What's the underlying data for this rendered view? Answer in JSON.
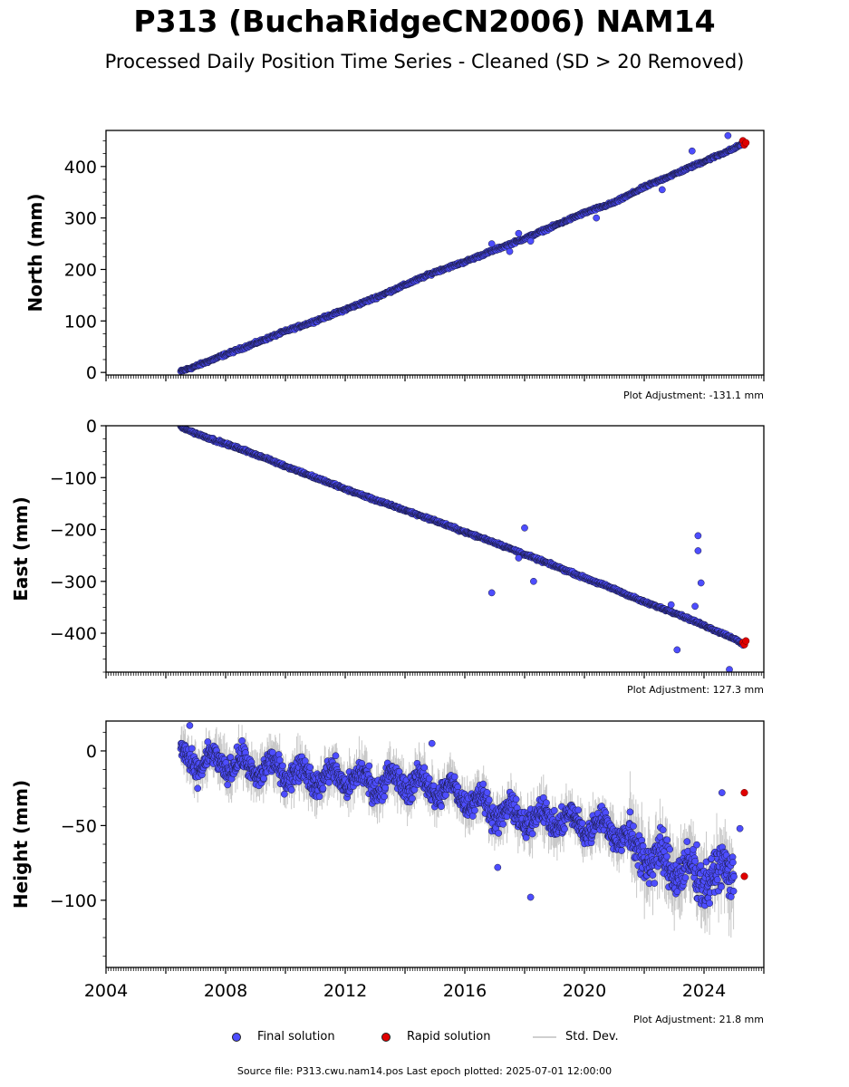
{
  "title": "P313 (BuchaRidgeCN2006) NAM14",
  "subtitle": "Processed Daily Position Time Series - Cleaned (SD > 20 Removed)",
  "footer": "Source file: P313.cwu.nam14.pos  Last epoch plotted: 2025-07-01 12:00:00",
  "legend": {
    "final": "Final solution",
    "rapid": "Rapid solution",
    "stddev": "Std. Dev."
  },
  "colors": {
    "final": "#4d4dff",
    "final_edge": "#1a1a40",
    "rapid": "#e00000",
    "stddev": "#c8c8c8"
  },
  "chart_data": [
    {
      "type": "scatter",
      "ylabel": "North (mm)",
      "adjustment": "Plot Adjustment: -131.1 mm",
      "xlim": [
        2004.0,
        2026.0
      ],
      "ylim": [
        -5,
        470
      ],
      "yticks": [
        0,
        100,
        200,
        300,
        400
      ],
      "ytick_labels": [
        "0",
        "100",
        "200",
        "300",
        "400"
      ],
      "series": [
        {
          "name": "Final solution",
          "x": [
            2006.5,
            2007.0,
            2008.0,
            2009.0,
            2010.0,
            2011.0,
            2012.0,
            2013.0,
            2014.0,
            2015.0,
            2016.0,
            2017.0,
            2018.0,
            2019.0,
            2020.0,
            2021.0,
            2022.0,
            2023.0,
            2024.0,
            2025.0,
            2025.3
          ],
          "y": [
            2,
            12,
            35,
            57,
            80,
            100,
            122,
            145,
            170,
            195,
            215,
            238,
            260,
            285,
            310,
            330,
            360,
            385,
            410,
            435,
            445
          ],
          "outliers_x": [
            2016.9,
            2017.5,
            2017.8,
            2018.2,
            2020.4,
            2022.6,
            2023.6,
            2024.8
          ],
          "outliers_y": [
            250,
            235,
            270,
            255,
            300,
            355,
            430,
            460
          ]
        },
        {
          "name": "Rapid solution",
          "x": [
            2025.3,
            2025.35,
            2025.4
          ],
          "y": [
            450,
            442,
            446
          ]
        }
      ]
    },
    {
      "type": "scatter",
      "ylabel": "East (mm)",
      "adjustment": "Plot Adjustment: 127.3 mm",
      "xlim": [
        2004.0,
        2026.0
      ],
      "ylim": [
        -475,
        0
      ],
      "yticks": [
        0,
        -100,
        -200,
        -300,
        -400
      ],
      "ytick_labels": [
        "0",
        "−100",
        "−200",
        "−300",
        "−400"
      ],
      "series": [
        {
          "name": "Final solution",
          "x": [
            2006.5,
            2007.0,
            2008.0,
            2009.0,
            2010.0,
            2011.0,
            2012.0,
            2013.0,
            2014.0,
            2015.0,
            2016.0,
            2017.0,
            2018.0,
            2019.0,
            2020.0,
            2021.0,
            2022.0,
            2023.0,
            2024.0,
            2025.0,
            2025.3
          ],
          "y": [
            -2,
            -15,
            -35,
            -55,
            -78,
            -100,
            -122,
            -143,
            -163,
            -183,
            -205,
            -225,
            -248,
            -270,
            -293,
            -315,
            -340,
            -360,
            -385,
            -410,
            -422
          ],
          "outliers_x": [
            2016.9,
            2018.0,
            2018.3,
            2017.8,
            2022.9,
            2023.1,
            2023.8,
            2023.8,
            2023.9,
            2023.7,
            2024.85
          ],
          "outliers_y": [
            -322,
            -197,
            -300,
            -255,
            -345,
            -432,
            -212,
            -241,
            -303,
            -348,
            -470
          ]
        },
        {
          "name": "Rapid solution",
          "x": [
            2025.3,
            2025.35,
            2025.4
          ],
          "y": [
            -418,
            -422,
            -415
          ]
        }
      ]
    },
    {
      "type": "scatter",
      "ylabel": "Height (mm)",
      "adjustment": "Plot Adjustment: 21.8 mm",
      "xlim": [
        2004.0,
        2026.0
      ],
      "ylim": [
        -145,
        20
      ],
      "yticks": [
        0,
        -50,
        -100
      ],
      "ytick_labels": [
        "0",
        "−50",
        "−100"
      ],
      "xticks": [
        2004,
        2008,
        2012,
        2016,
        2020,
        2024
      ],
      "xtick_labels": [
        "2004",
        "2008",
        "2012",
        "2016",
        "2020",
        "2024"
      ],
      "series": [
        {
          "name": "Final solution",
          "x": [
            2006.5,
            2007.0,
            2008.0,
            2009.0,
            2010.0,
            2011.0,
            2012.0,
            2013.0,
            2014.0,
            2015.0,
            2016.0,
            2017.0,
            2018.0,
            2019.0,
            2020.0,
            2021.0,
            2022.0,
            2023.0,
            2024.0,
            2025.0
          ],
          "y": [
            -5,
            -8,
            -8,
            -12,
            -13,
            -18,
            -18,
            -22,
            -20,
            -25,
            -30,
            -40,
            -45,
            -45,
            -50,
            -52,
            -70,
            -78,
            -85,
            -80
          ],
          "outliers_x": [
            2006.8,
            2012.8,
            2014.9,
            2017.1,
            2018.2,
            2024.6,
            2025.2
          ],
          "outliers_y": [
            17,
            -10,
            5,
            -78,
            -98,
            -28,
            -52
          ]
        },
        {
          "name": "Rapid solution",
          "x": [
            2025.35,
            2025.35
          ],
          "y": [
            -28,
            -84
          ]
        }
      ]
    }
  ]
}
